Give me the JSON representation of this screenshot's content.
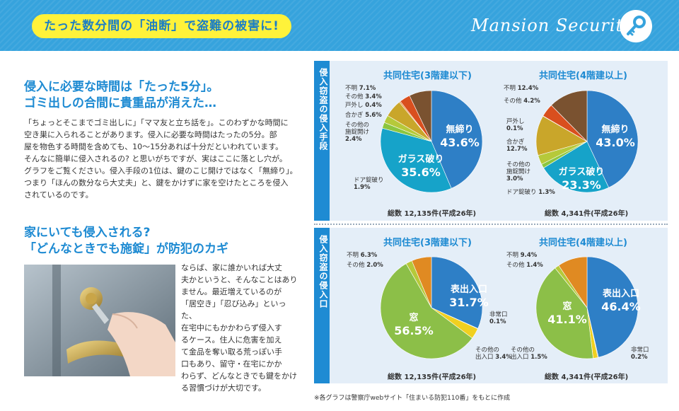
{
  "header": {
    "banner": "たった数分間の「油断」で盗難の被害に!",
    "brand": "Mansion Security"
  },
  "section1": {
    "heading_line1": "侵入に必要な時間は「たった5分」。",
    "heading_line2": "ゴミ出しの合間に貴重品が消えた…",
    "body": [
      "「ちょっとそこまでゴミ出しに」「ママ友と立ち話を」。このわずかな時間に",
      "空き巣に入られることがあります。侵入に必要な時間はたったの5分。部",
      "屋を物色する時間を含めても、10〜15分あれば十分だといわれています。",
      "そんなに簡単に侵入されるの? と思いがちですが、実はここに落とし穴が。",
      "グラフをご覧ください。侵入手段の1位は、鍵のこじ開けではなく「無締り」。",
      "つまり「ほんの数分なら大丈夫」と、鍵をかけずに家を空けたところを侵入",
      "されているのです。"
    ]
  },
  "section2": {
    "heading_line1": "家にいても侵入される?",
    "heading_line2": "「どんなときでも施錠」が防犯のカギ",
    "body": [
      "ならば、家に誰かいれば大丈",
      "夫かというと、そんなことはあり",
      "ません。最近増えているのが",
      "「居空き」「忍び込み」といった、",
      "在宅中にもかかわらず侵入す",
      "るケース。住人に危害を加え",
      "て金品を奪い取る荒っぽい手",
      "口もあり、留守・在宅にかか",
      "わらず、どんなときでも鍵をかけ",
      "る習慣づけが大切です。"
    ]
  },
  "panels": {
    "top_tab": "侵入窃盗の侵入手段",
    "bottom_tab": "侵入窃盗の侵入口"
  },
  "chart_data": [
    {
      "type": "pie",
      "title": "共同住宅(3階建以下)",
      "total": "総数 12,135件(平成26年)",
      "slices": [
        {
          "name": "無締り",
          "value": 43.6,
          "color": "#2e7fc6"
        },
        {
          "name": "ガラス破り",
          "value": 35.6,
          "color": "#16a3c9"
        },
        {
          "name": "ドア錠破り",
          "value": 1.9,
          "color": "#8cc63f"
        },
        {
          "name": "その他の施錠開け",
          "value": 2.4,
          "color": "#b6c93a"
        },
        {
          "name": "合かぎ",
          "value": 5.6,
          "color": "#c9a62a"
        },
        {
          "name": "戸外し",
          "value": 0.4,
          "color": "#e07f2a"
        },
        {
          "name": "その他",
          "value": 3.4,
          "color": "#d94f1e"
        },
        {
          "name": "不明",
          "value": 7.1,
          "color": "#7a5230"
        }
      ],
      "labels": {
        "main": {
          "name": "無締り",
          "value": "43.6%"
        },
        "second": {
          "name": "ガラス破り",
          "value": "35.6%"
        },
        "unknown": "7.1%",
        "other": "3.4%",
        "door_off": "0.4%",
        "key": "5.6%",
        "other_unlock": "2.4%",
        "door_lock": "1.9%"
      }
    },
    {
      "type": "pie",
      "title": "共同住宅(4階建以上)",
      "total": "総数 4,341件(平成26年)",
      "slices": [
        {
          "name": "無締り",
          "value": 43.0,
          "color": "#2e7fc6"
        },
        {
          "name": "ガラス破り",
          "value": 23.3,
          "color": "#16a3c9"
        },
        {
          "name": "ドア錠破り",
          "value": 1.3,
          "color": "#8cc63f"
        },
        {
          "name": "その他の施錠開け",
          "value": 3.0,
          "color": "#b6c93a"
        },
        {
          "name": "合かぎ",
          "value": 12.7,
          "color": "#c9a62a"
        },
        {
          "name": "戸外し",
          "value": 0.1,
          "color": "#e07f2a"
        },
        {
          "name": "その他",
          "value": 4.2,
          "color": "#d94f1e"
        },
        {
          "name": "不明",
          "value": 12.4,
          "color": "#7a5230"
        }
      ],
      "labels": {
        "main": {
          "name": "無締り",
          "value": "43.0%"
        },
        "second": {
          "name": "ガラス破り",
          "value": "23.3%"
        },
        "unknown": "12.4%",
        "other": "4.2%",
        "door_off": "0.1%",
        "key": "12.7%",
        "other_unlock": "3.0%",
        "door_lock": "1.3%"
      }
    },
    {
      "type": "pie",
      "title": "共同住宅(3階建以下)",
      "total": "総数 12,135件(平成26年)",
      "slices": [
        {
          "name": "表出入口",
          "value": 31.7,
          "color": "#2e7fc6"
        },
        {
          "name": "非常口",
          "value": 0.1,
          "color": "#7a5230"
        },
        {
          "name": "その他の出入口",
          "value": 3.4,
          "color": "#f0d020"
        },
        {
          "name": "窓",
          "value": 56.5,
          "color": "#8cbf48"
        },
        {
          "name": "その他",
          "value": 2.0,
          "color": "#b6c93a"
        },
        {
          "name": "不明",
          "value": 6.3,
          "color": "#e08a22"
        }
      ],
      "labels": {
        "main": {
          "name": "表出入口",
          "value": "31.7%"
        },
        "second": {
          "name": "窓",
          "value": "56.5%"
        },
        "unknown": "6.3%",
        "other": "2.0%",
        "emergency": "0.1%",
        "other_entrance": "3.4%"
      }
    },
    {
      "type": "pie",
      "title": "共同住宅(4階建以上)",
      "total": "総数 4,341件(平成26年)",
      "slices": [
        {
          "name": "表出入口",
          "value": 46.4,
          "color": "#2e7fc6"
        },
        {
          "name": "非常口",
          "value": 0.2,
          "color": "#7a5230"
        },
        {
          "name": "その他の出入口",
          "value": 1.5,
          "color": "#f0d020"
        },
        {
          "name": "窓",
          "value": 41.1,
          "color": "#8cbf48"
        },
        {
          "name": "その他",
          "value": 1.4,
          "color": "#b6c93a"
        },
        {
          "name": "不明",
          "value": 9.4,
          "color": "#e08a22"
        }
      ],
      "labels": {
        "main": {
          "name": "表出入口",
          "value": "46.4%"
        },
        "second": {
          "name": "窓",
          "value": "41.1%"
        },
        "unknown": "9.4%",
        "other": "1.4%",
        "emergency": "0.2%",
        "other_entrance": "1.5%"
      }
    }
  ],
  "cat": {
    "unknown": "不明",
    "other": "その他",
    "door_off": "戸外し",
    "key": "合かぎ",
    "other_unlock_1": "その他の",
    "other_unlock_2": "施錠開け",
    "door_lock": "ドア錠破り",
    "emergency": "非常口",
    "other_entrance_1": "その他の",
    "other_entrance_2": "出入口"
  },
  "footnote": "※各グラフは警察庁webサイト「住まいる防犯110番」をもとに作成"
}
